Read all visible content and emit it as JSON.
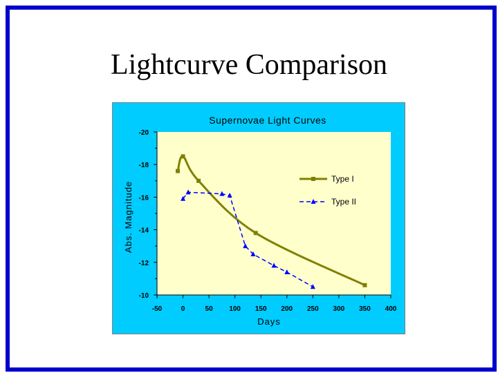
{
  "slide": {
    "title": "Lightcurve Comparison"
  },
  "chart_data": {
    "type": "line",
    "title": "Supernovae Light Curves",
    "xlabel": "Days",
    "ylabel": "Abs. Magnitude",
    "xlim": [
      -50,
      400
    ],
    "ylim": [
      -20,
      -10
    ],
    "xticks": [
      "-50",
      "0",
      "50",
      "100",
      "150",
      "200",
      "250",
      "300",
      "350",
      "400"
    ],
    "yticks": [
      "-20",
      "-18",
      "-16",
      "-14",
      "-12",
      "-10"
    ],
    "legend_position": "right",
    "grid": false,
    "series": [
      {
        "name": "Type I",
        "color": "#808000",
        "marker": "square",
        "style": "solid",
        "points": [
          [
            -10,
            -17.6
          ],
          [
            0,
            -18.5
          ],
          [
            30,
            -17
          ],
          [
            140,
            -13.8
          ],
          [
            350,
            -10.6
          ]
        ]
      },
      {
        "name": "Type II",
        "color": "#0000ff",
        "marker": "triangle",
        "style": "dashed",
        "points": [
          [
            0,
            -15.9
          ],
          [
            10,
            -16.3
          ],
          [
            75,
            -16.2
          ],
          [
            90,
            -16.1
          ],
          [
            120,
            -13
          ],
          [
            135,
            -12.5
          ],
          [
            175,
            -11.8
          ],
          [
            200,
            -11.4
          ],
          [
            250,
            -10.5
          ]
        ]
      }
    ],
    "colors": {
      "chart_background": "#00ccff",
      "plot_background": "#ffffcc",
      "frame": "#0000cc"
    }
  }
}
